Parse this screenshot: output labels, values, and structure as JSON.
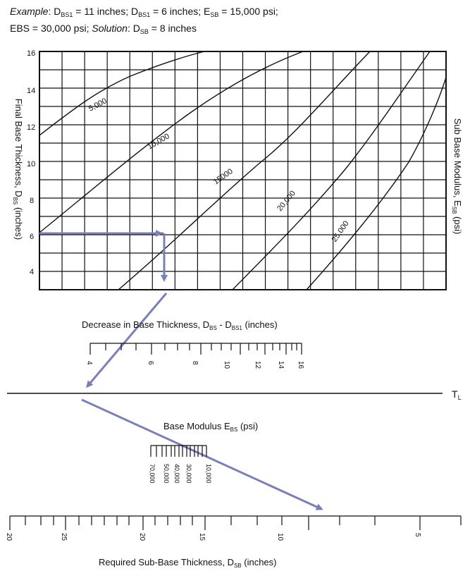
{
  "example": {
    "label": "Example",
    "line1_rest": ": D",
    "d1_sub": "BS1",
    "d1_val": " = 11 inches; D",
    "d2_sub": "BS1",
    "d2_val": " = 6 inches; E",
    "e_sub": "SB",
    "e_val": " = 15,000 psi;",
    "line2_a": "EBS = 30,000 psi; ",
    "solution_label": "Solution",
    "line2_b": ": D",
    "sol_sub": "SB",
    "sol_val": " = 8 inches"
  },
  "chart": {
    "y_axis_label": "Final Base Thickness, D",
    "y_axis_label_sub": "BS",
    "y_axis_label_end": " (inches)",
    "right_label": "Sub Base Modulus, E",
    "right_label_sub": "SB",
    "right_label_end": " (psi)",
    "y_ticks": [
      "16",
      "14",
      "12",
      "10",
      "8",
      "6",
      "4"
    ],
    "curve_labels": [
      "5,000",
      "10,000",
      "15000",
      "20,000",
      "25,000"
    ]
  },
  "scale1": {
    "title": "Decrease in Base Thickness, D",
    "sub_a": "BS",
    "mid": " - D",
    "sub_b": "BS1",
    "end": " (inches)",
    "ticks": [
      "4",
      "6",
      "8",
      "10",
      "12",
      "14",
      "16"
    ]
  },
  "turning_line": {
    "label": "T",
    "label_sub": "L"
  },
  "scale2": {
    "title": "Base Modulus E",
    "sub": "BS",
    "end": " (psi)",
    "ticks": [
      "70,000",
      "50,000",
      "40,000",
      "30,000",
      "10,000"
    ]
  },
  "scale3": {
    "title": "Required Sub-Base Thickness, D",
    "sub": "SB",
    "end": " (inches)",
    "ticks": [
      "20",
      "25",
      "20",
      "15",
      "10",
      "5"
    ]
  },
  "colors": {
    "arrow": "#7a7fb8",
    "line": "#111111"
  }
}
